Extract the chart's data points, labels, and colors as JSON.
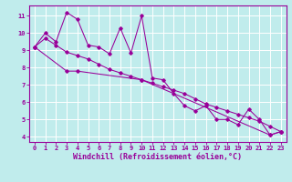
{
  "xlabel": "Windchill (Refroidissement éolien,°C)",
  "bg_color": "#c0ecec",
  "line_color": "#990099",
  "grid_color": "#ffffff",
  "xlim": [
    -0.5,
    23.5
  ],
  "ylim": [
    3.7,
    11.6
  ],
  "yticks": [
    4,
    5,
    6,
    7,
    8,
    9,
    10,
    11
  ],
  "xticks": [
    0,
    1,
    2,
    3,
    4,
    5,
    6,
    7,
    8,
    9,
    10,
    11,
    12,
    13,
    14,
    15,
    16,
    17,
    18,
    19,
    20,
    21,
    22,
    23
  ],
  "series": [
    {
      "x": [
        0,
        1,
        2,
        3,
        4,
        5,
        6,
        7,
        8,
        9,
        10,
        11,
        12,
        13,
        14,
        15,
        16,
        17,
        18,
        19,
        20,
        21,
        22,
        23
      ],
      "y": [
        9.2,
        10.0,
        9.5,
        11.2,
        10.8,
        9.3,
        9.2,
        8.8,
        10.3,
        8.85,
        11.0,
        7.4,
        7.3,
        6.5,
        5.8,
        5.5,
        5.8,
        5.0,
        5.0,
        4.7,
        5.6,
        5.0,
        4.1,
        4.3
      ]
    },
    {
      "x": [
        0,
        1,
        2,
        3,
        4,
        5,
        6,
        7,
        8,
        9,
        10,
        11,
        12,
        13,
        14,
        15,
        16,
        17,
        18,
        19,
        20,
        21,
        22,
        23
      ],
      "y": [
        9.2,
        9.7,
        9.3,
        8.9,
        8.7,
        8.5,
        8.2,
        7.9,
        7.7,
        7.5,
        7.3,
        7.1,
        6.9,
        6.7,
        6.5,
        6.2,
        5.9,
        5.7,
        5.5,
        5.3,
        5.1,
        4.9,
        4.6,
        4.3
      ]
    },
    {
      "x": [
        0,
        3,
        4,
        10,
        22,
        23
      ],
      "y": [
        9.2,
        7.8,
        7.8,
        7.3,
        4.1,
        4.3
      ]
    }
  ],
  "tick_fontsize": 5.0,
  "label_fontsize": 6.0
}
